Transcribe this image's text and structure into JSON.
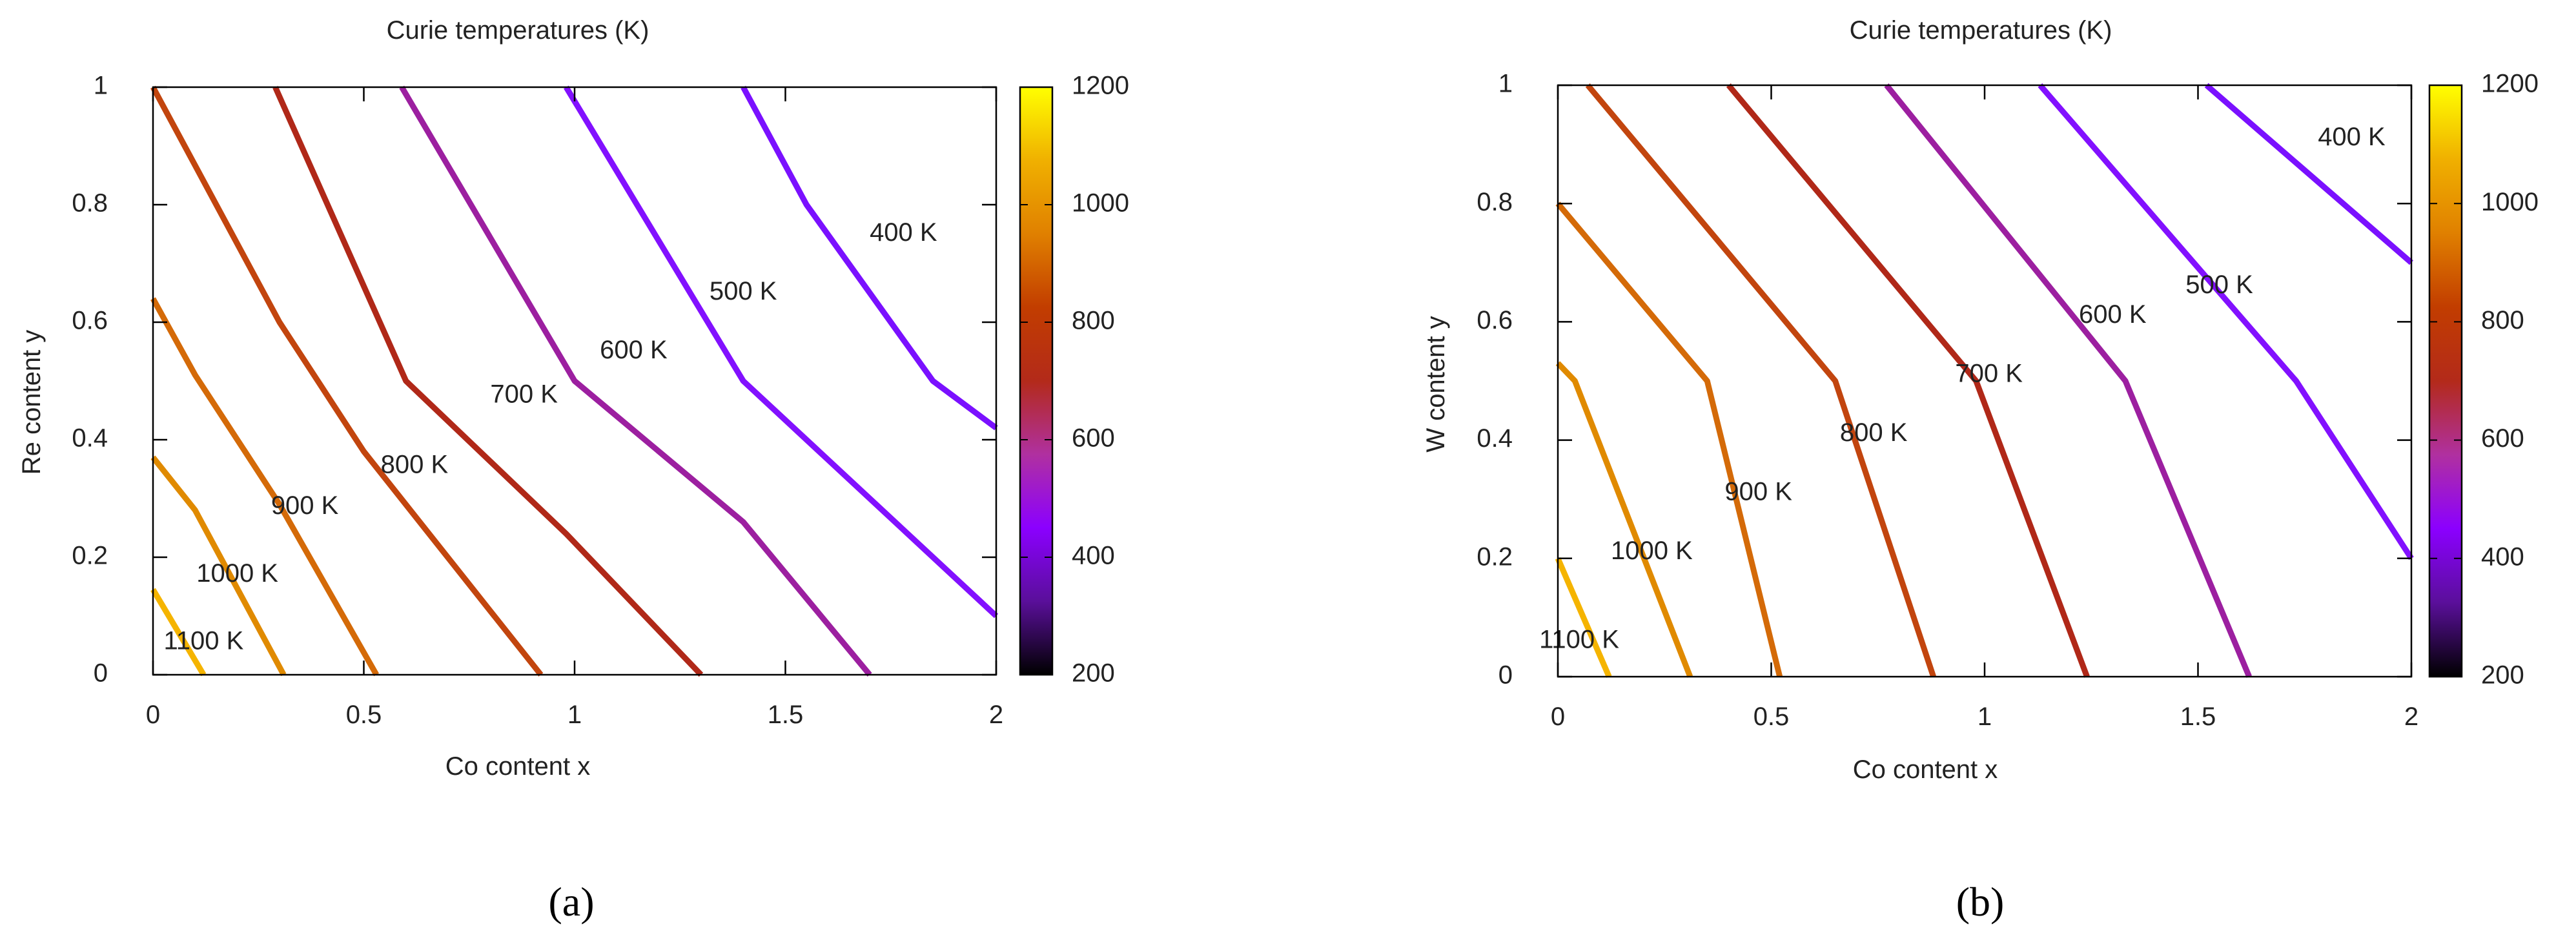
{
  "panels": [
    {
      "caption": "(a)",
      "chart_data": {
        "type": "line",
        "title": "Curie temperatures (K)",
        "xlabel": "Co content x",
        "ylabel": "Re content y",
        "xlim": [
          0,
          2
        ],
        "ylim": [
          0,
          1
        ],
        "x_ticks": [
          "0",
          "0.5",
          "1",
          "1.5",
          "2"
        ],
        "y_ticks": [
          "0",
          "0.2",
          "0.4",
          "0.6",
          "0.8",
          "1"
        ],
        "grid": false,
        "colorbar": {
          "range": [
            200,
            1200
          ],
          "ticks": [
            "200",
            "400",
            "600",
            "800",
            "1000",
            "1200"
          ],
          "colors": [
            "#000000",
            "#5a0f9a",
            "#8b00ff",
            "#b030a0",
            "#b32a1a",
            "#c23d00",
            "#e08000",
            "#f0b000",
            "#ffff00"
          ]
        },
        "series": [
          {
            "name": "1100 K",
            "value": 1100,
            "color": "#f5b400",
            "x": [
              0,
              0.12
            ],
            "y": [
              0.145,
              0
            ]
          },
          {
            "name": "1000 K",
            "value": 1000,
            "color": "#e08a00",
            "x": [
              0,
              0.1,
              0.31
            ],
            "y": [
              0.37,
              0.28,
              0
            ]
          },
          {
            "name": "900 K",
            "value": 900,
            "color": "#d46a08",
            "x": [
              0,
              0.1,
              0.3,
              0.53
            ],
            "y": [
              0.64,
              0.51,
              0.29,
              0
            ]
          },
          {
            "name": "800 K",
            "value": 800,
            "color": "#c2450e",
            "x": [
              0,
              0.3,
              0.5,
              0.92
            ],
            "y": [
              1,
              0.6,
              0.38,
              0
            ]
          },
          {
            "name": "700 K",
            "value": 700,
            "color": "#b02818",
            "x": [
              0.29,
              0.6,
              0.98,
              1.3
            ],
            "y": [
              1,
              0.5,
              0.24,
              0
            ]
          },
          {
            "name": "600 K",
            "value": 600,
            "color": "#9c1fa0",
            "x": [
              0.59,
              1,
              1.4,
              1.7
            ],
            "y": [
              1,
              0.5,
              0.26,
              0
            ]
          },
          {
            "name": "500 K",
            "value": 500,
            "color": "#8210ff",
            "x": [
              0.98,
              1.4,
              2
            ],
            "y": [
              1,
              0.5,
              0.1
            ]
          },
          {
            "name": "400 K",
            "value": 400,
            "color": "#7a10ff",
            "x": [
              1.4,
              1.55,
              1.85,
              2
            ],
            "y": [
              1,
              0.8,
              0.5,
              0.42
            ]
          }
        ],
        "annotations": [
          {
            "text": "1100 K",
            "x": 0.12,
            "y": 0.055
          },
          {
            "text": "1000 K",
            "x": 0.2,
            "y": 0.17
          },
          {
            "text": "900 K",
            "x": 0.36,
            "y": 0.285
          },
          {
            "text": "800 K",
            "x": 0.62,
            "y": 0.355
          },
          {
            "text": "700 K",
            "x": 0.88,
            "y": 0.475
          },
          {
            "text": "600 K",
            "x": 1.14,
            "y": 0.55
          },
          {
            "text": "500 K",
            "x": 1.4,
            "y": 0.65
          },
          {
            "text": "400 K",
            "x": 1.78,
            "y": 0.75
          }
        ]
      }
    },
    {
      "caption": "(b)",
      "chart_data": {
        "type": "line",
        "title": "Curie temperatures (K)",
        "xlabel": "Co content x",
        "ylabel": "W content y",
        "xlim": [
          0,
          2
        ],
        "ylim": [
          0,
          1
        ],
        "x_ticks": [
          "0",
          "0.5",
          "1",
          "1.5",
          "2"
        ],
        "y_ticks": [
          "0",
          "0.2",
          "0.4",
          "0.6",
          "0.8",
          "1"
        ],
        "grid": false,
        "colorbar": {
          "range": [
            200,
            1200
          ],
          "ticks": [
            "200",
            "400",
            "600",
            "800",
            "1000",
            "1200"
          ],
          "colors": [
            "#000000",
            "#5a0f9a",
            "#8b00ff",
            "#b030a0",
            "#b32a1a",
            "#c23d00",
            "#e08000",
            "#f0b000",
            "#ffff00"
          ]
        },
        "series": [
          {
            "name": "1100 K",
            "value": 1100,
            "color": "#f5b400",
            "x": [
              0,
              0.12
            ],
            "y": [
              0.2,
              0
            ]
          },
          {
            "name": "1000 K",
            "value": 1000,
            "color": "#e08a00",
            "x": [
              0,
              0.04,
              0.31
            ],
            "y": [
              0.53,
              0.5,
              0
            ]
          },
          {
            "name": "900 K",
            "value": 900,
            "color": "#d46a08",
            "x": [
              0,
              0.35,
              0.52
            ],
            "y": [
              0.8,
              0.5,
              0
            ]
          },
          {
            "name": "800 K",
            "value": 800,
            "color": "#c2450e",
            "x": [
              0.07,
              0.65,
              0.88
            ],
            "y": [
              1,
              0.5,
              0
            ]
          },
          {
            "name": "700 K",
            "value": 700,
            "color": "#b02818",
            "x": [
              0.4,
              0.98,
              1.24
            ],
            "y": [
              1,
              0.5,
              0
            ]
          },
          {
            "name": "600 K",
            "value": 600,
            "color": "#9c1fa0",
            "x": [
              0.77,
              1.33,
              1.62
            ],
            "y": [
              1,
              0.5,
              0
            ]
          },
          {
            "name": "500 K",
            "value": 500,
            "color": "#8210ff",
            "x": [
              1.13,
              1.73,
              2
            ],
            "y": [
              1,
              0.5,
              0.2
            ]
          },
          {
            "name": "400 K",
            "value": 400,
            "color": "#7a10ff",
            "x": [
              1.52,
              2
            ],
            "y": [
              1,
              0.7
            ]
          }
        ],
        "annotations": [
          {
            "text": "1100 K",
            "x": 0.05,
            "y": 0.06
          },
          {
            "text": "1000 K",
            "x": 0.22,
            "y": 0.21
          },
          {
            "text": "900 K",
            "x": 0.47,
            "y": 0.31
          },
          {
            "text": "800 K",
            "x": 0.74,
            "y": 0.41
          },
          {
            "text": "700 K",
            "x": 1.01,
            "y": 0.51
          },
          {
            "text": "600 K",
            "x": 1.3,
            "y": 0.61
          },
          {
            "text": "500 K",
            "x": 1.55,
            "y": 0.66
          },
          {
            "text": "400 K",
            "x": 1.86,
            "y": 0.91
          }
        ]
      }
    }
  ]
}
